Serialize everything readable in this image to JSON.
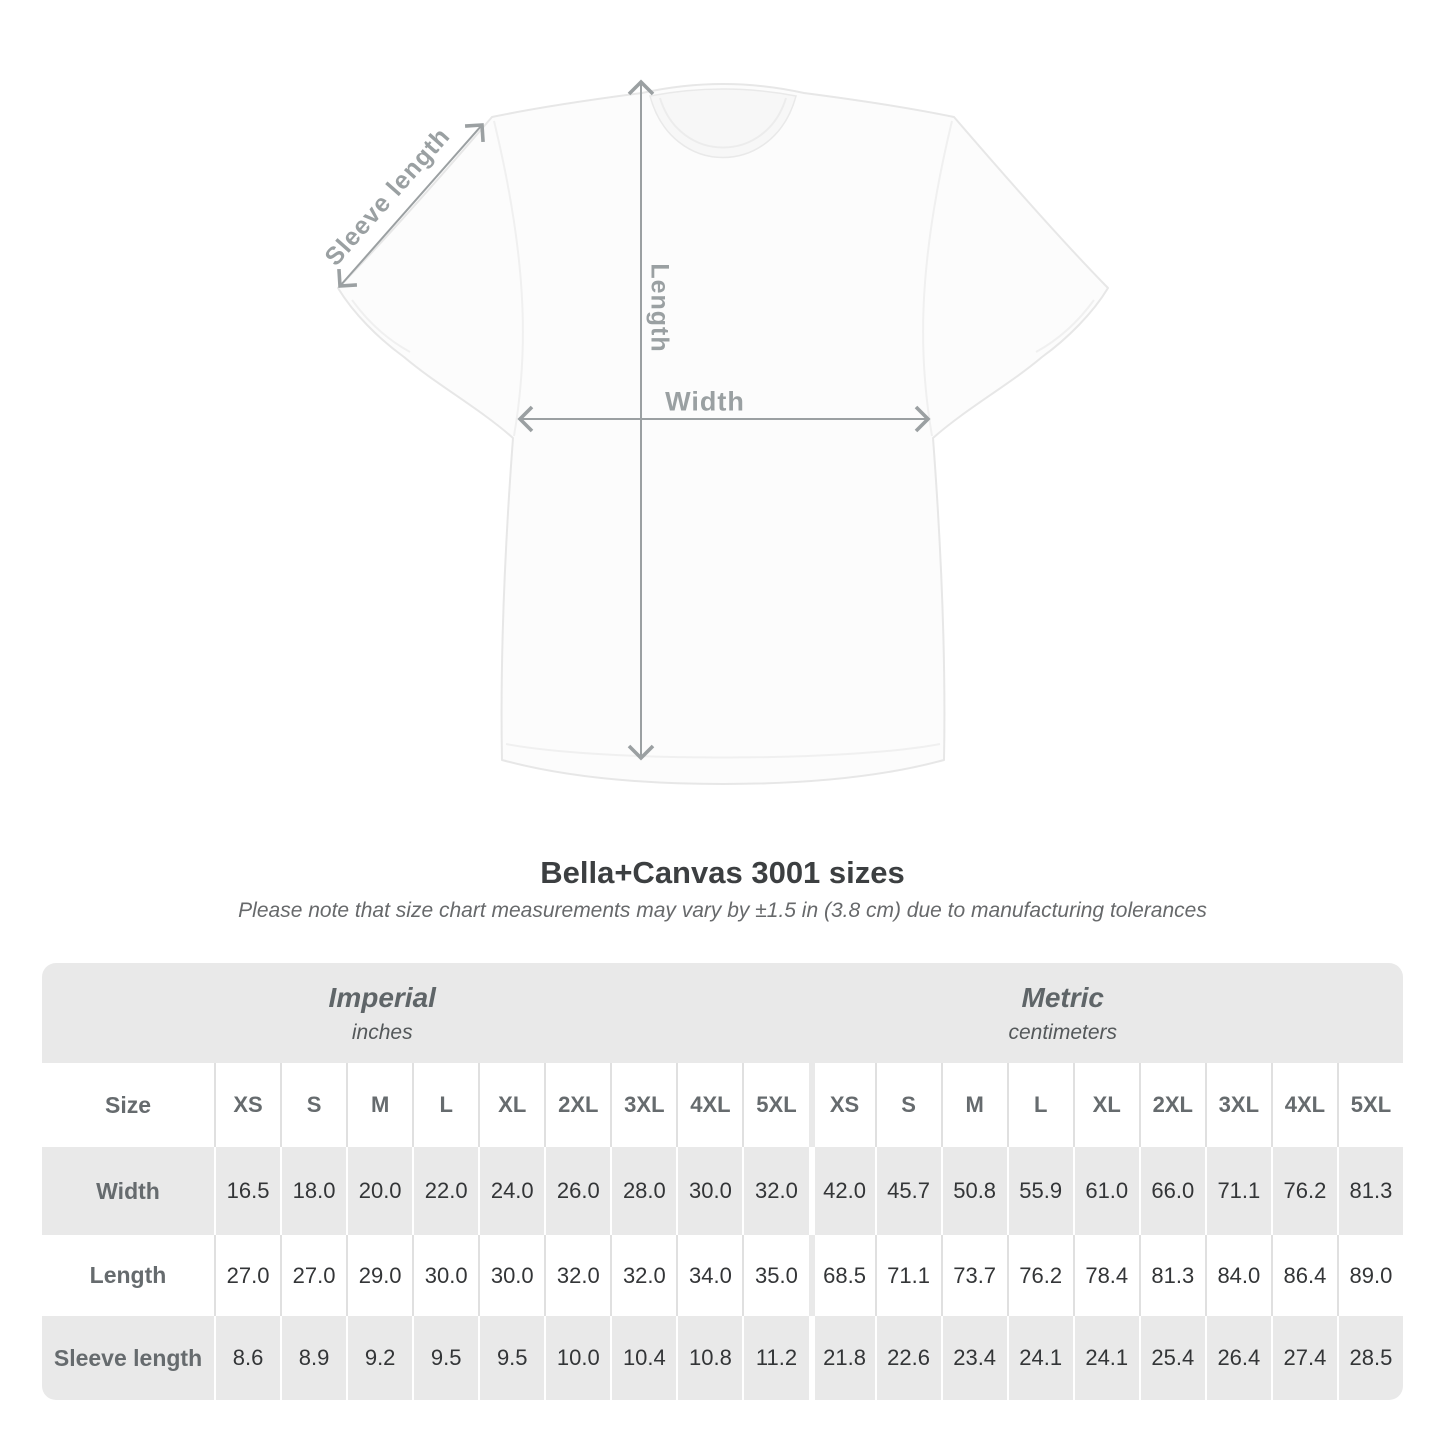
{
  "diagram": {
    "sleeve_label": "Sleeve length",
    "length_label": "Length",
    "width_label": "Width"
  },
  "title": "Bella+Canvas 3001 sizes",
  "subtitle": "Please note that size chart measurements may vary by ±1.5 in (3.8 cm) due to manufacturing tolerances",
  "table": {
    "sections": [
      {
        "label": "Imperial",
        "unit": "inches"
      },
      {
        "label": "Metric",
        "unit": "centimeters"
      }
    ],
    "size_label": "Size",
    "sizes": [
      "XS",
      "S",
      "M",
      "L",
      "XL",
      "2XL",
      "3XL",
      "4XL",
      "5XL"
    ],
    "rows": [
      {
        "label": "Width",
        "imperial": [
          "16.5",
          "18.0",
          "20.0",
          "22.0",
          "24.0",
          "26.0",
          "28.0",
          "30.0",
          "32.0"
        ],
        "metric": [
          "42.0",
          "45.7",
          "50.8",
          "55.9",
          "61.0",
          "66.0",
          "71.1",
          "76.2",
          "81.3"
        ]
      },
      {
        "label": "Length",
        "imperial": [
          "27.0",
          "27.0",
          "29.0",
          "30.0",
          "30.0",
          "32.0",
          "32.0",
          "34.0",
          "35.0"
        ],
        "metric": [
          "68.5",
          "71.1",
          "73.7",
          "76.2",
          "78.4",
          "81.3",
          "84.0",
          "86.4",
          "89.0"
        ]
      },
      {
        "label": "Sleeve length",
        "imperial": [
          "8.6",
          "8.9",
          "9.2",
          "9.5",
          "9.5",
          "10.0",
          "10.4",
          "10.8",
          "11.2"
        ],
        "metric": [
          "21.8",
          "22.6",
          "23.4",
          "24.1",
          "24.1",
          "25.4",
          "26.4",
          "27.4",
          "28.5"
        ]
      }
    ]
  },
  "chart_data": {
    "type": "table",
    "title": "Bella+Canvas 3001 sizes",
    "note": "Please note that size chart measurements may vary by ±1.5 in (3.8 cm) due to manufacturing tolerances",
    "column_groups": [
      "Imperial (inches)",
      "Metric (centimeters)"
    ],
    "columns": [
      "XS",
      "S",
      "M",
      "L",
      "XL",
      "2XL",
      "3XL",
      "4XL",
      "5XL"
    ],
    "rows": [
      {
        "label": "Width",
        "imperial": [
          16.5,
          18.0,
          20.0,
          22.0,
          24.0,
          26.0,
          28.0,
          30.0,
          32.0
        ],
        "metric": [
          42.0,
          45.7,
          50.8,
          55.9,
          61.0,
          66.0,
          71.1,
          76.2,
          81.3
        ]
      },
      {
        "label": "Length",
        "imperial": [
          27.0,
          27.0,
          29.0,
          30.0,
          30.0,
          32.0,
          32.0,
          34.0,
          35.0
        ],
        "metric": [
          68.5,
          71.1,
          73.7,
          76.2,
          78.4,
          81.3,
          84.0,
          86.4,
          89.0
        ]
      },
      {
        "label": "Sleeve length",
        "imperial": [
          8.6,
          8.9,
          9.2,
          9.5,
          9.5,
          10.0,
          10.4,
          10.8,
          11.2
        ],
        "metric": [
          21.8,
          22.6,
          23.4,
          24.1,
          24.1,
          25.4,
          26.4,
          27.4,
          28.5
        ]
      }
    ]
  },
  "colors": {
    "stripe_gray": "#e9e9e9",
    "label_gray": "#666b6e",
    "value_dark": "#333537",
    "arrow_gray": "#9aa0a2",
    "title_dark": "#3c3f41"
  }
}
